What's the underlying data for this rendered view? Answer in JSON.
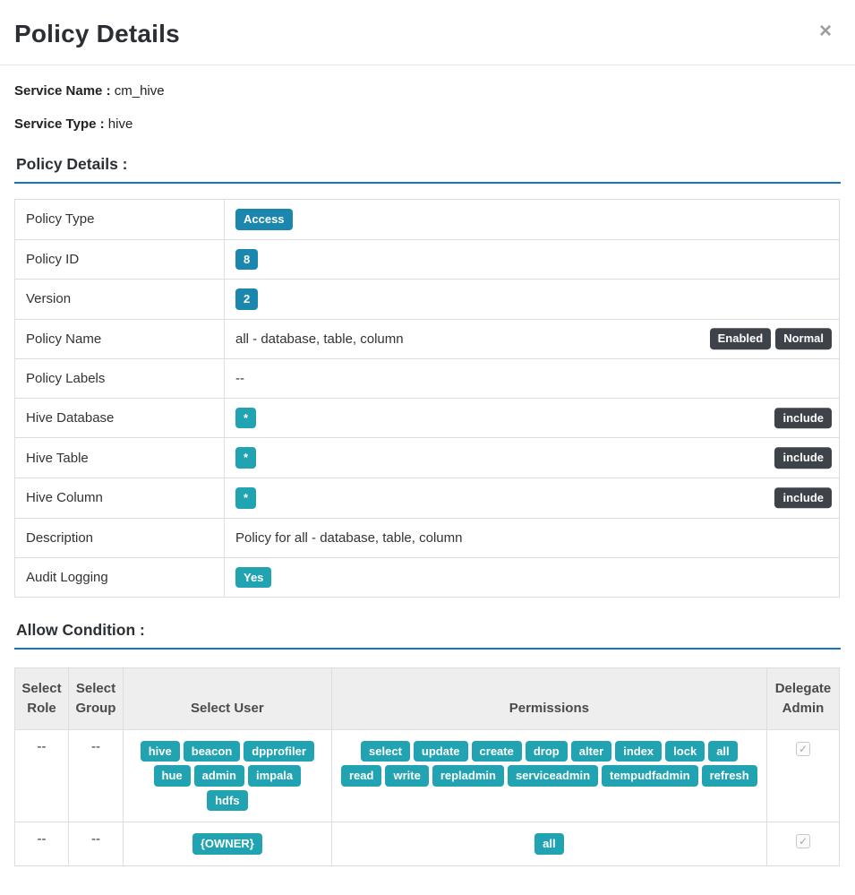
{
  "modal": {
    "title": "Policy Details",
    "close_icon": "×"
  },
  "service": {
    "name_label": "Service Name :",
    "name_value": "cm_hive",
    "type_label": "Service Type :",
    "type_value": "hive"
  },
  "colors": {
    "badge_blue": "#1b86ae",
    "tag_teal": "#21a3b2",
    "badge_dark": "#3d4349",
    "section_underline": "#1379bd"
  },
  "policy_details": {
    "heading": "Policy Details :",
    "rows": [
      {
        "label": "Policy Type",
        "value_badges": [
          "Access"
        ],
        "badge_style": "blue"
      },
      {
        "label": "Policy ID",
        "value_badges": [
          "8"
        ],
        "badge_style": "blue"
      },
      {
        "label": "Version",
        "value_badges": [
          "2"
        ],
        "badge_style": "blue"
      },
      {
        "label": "Policy Name",
        "value_text": "all - database, table, column",
        "right_badges": [
          "Enabled",
          "Normal"
        ]
      },
      {
        "label": "Policy Labels",
        "value_text": "--"
      },
      {
        "label": "Hive Database",
        "value_badges": [
          "*"
        ],
        "badge_style": "teal",
        "right_badges": [
          "include"
        ]
      },
      {
        "label": "Hive Table",
        "value_badges": [
          "*"
        ],
        "badge_style": "teal",
        "right_badges": [
          "include"
        ]
      },
      {
        "label": "Hive Column",
        "value_badges": [
          "*"
        ],
        "badge_style": "teal",
        "right_badges": [
          "include"
        ]
      },
      {
        "label": "Description",
        "value_text": "Policy for all - database, table, column"
      },
      {
        "label": "Audit Logging",
        "value_badges": [
          "Yes"
        ],
        "badge_style": "teal"
      }
    ]
  },
  "allow_condition": {
    "heading": "Allow Condition :",
    "columns": [
      "Select Role",
      "Select Group",
      "Select User",
      "Permissions",
      "Delegate Admin"
    ],
    "checkmark": "✓",
    "rows": [
      {
        "role": "--",
        "group": "--",
        "users": [
          "hive",
          "beacon",
          "dpprofiler",
          "hue",
          "admin",
          "impala",
          "hdfs"
        ],
        "permissions": [
          "select",
          "update",
          "create",
          "drop",
          "alter",
          "index",
          "lock",
          "all",
          "read",
          "write",
          "repladmin",
          "serviceadmin",
          "tempudfadmin",
          "refresh"
        ],
        "delegate_admin": true
      },
      {
        "role": "--",
        "group": "--",
        "users": [
          "{OWNER}"
        ],
        "permissions": [
          "all"
        ],
        "delegate_admin": true
      }
    ]
  }
}
